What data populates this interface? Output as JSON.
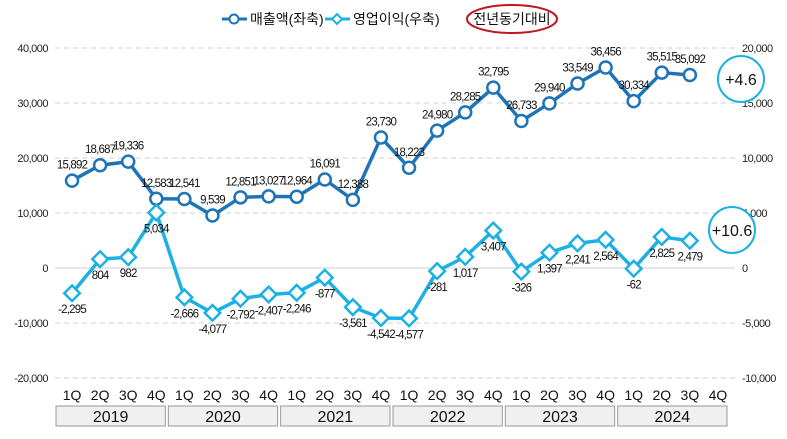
{
  "chart_data": {
    "type": "line",
    "legend": {
      "revenue": "매출액(좌축)",
      "op": "영업이익(우축)",
      "yoy": "전년동기대비"
    },
    "quarters": [
      "1Q",
      "2Q",
      "3Q",
      "4Q",
      "1Q",
      "2Q",
      "3Q",
      "4Q",
      "1Q",
      "2Q",
      "3Q",
      "4Q",
      "1Q",
      "2Q",
      "3Q",
      "4Q",
      "1Q",
      "2Q",
      "3Q",
      "4Q",
      "1Q",
      "2Q",
      "3Q",
      "4Q"
    ],
    "years": [
      "2019",
      "2020",
      "2021",
      "2022",
      "2023",
      "2024"
    ],
    "left_axis": {
      "ylim": [
        -20000,
        40000
      ],
      "ticks": [
        "-20,000",
        "-10,000",
        "0",
        "10,000",
        "20,000",
        "30,000",
        "40,000"
      ]
    },
    "right_axis": {
      "ylim": [
        -10000,
        20000
      ],
      "ticks": [
        "-10,000",
        "-5,000",
        "0",
        "5,000",
        "10,000",
        "15,000",
        "20,000"
      ]
    },
    "series": [
      {
        "name": "매출액(좌축)",
        "axis": "left",
        "color": "#1f74b8",
        "values": [
          15892,
          18687,
          19336,
          12583,
          12541,
          9539,
          12851,
          13027,
          12964,
          16091,
          12388,
          23730,
          18223,
          24980,
          28285,
          32795,
          26733,
          29940,
          33549,
          36456,
          30334,
          35515,
          35092
        ],
        "labels": [
          "15,892",
          "18,687",
          "19,336",
          "12,583",
          "12,541",
          "9,539",
          "12,851",
          "13,027",
          "12,964",
          "16,091",
          "12,388",
          "23,730",
          "18,223",
          "24,980",
          "28,285",
          "32,795",
          "26,733",
          "29,940",
          "33,549",
          "36,456",
          "30,334",
          "35,515",
          "35,092"
        ]
      },
      {
        "name": "영업이익(우축)",
        "axis": "right",
        "color": "#1cb0e3",
        "values": [
          -2295,
          804,
          982,
          5034,
          -2666,
          -4077,
          -2792,
          -2407,
          -2246,
          -877,
          -3561,
          -4542,
          -4577,
          -281,
          1017,
          3407,
          -326,
          1397,
          2241,
          2564,
          -62,
          2825,
          2479
        ],
        "labels": [
          "-2,295",
          "804",
          "982",
          "5,034",
          "-2,666",
          "-4,077",
          "-2,792",
          "-2,407",
          "-2,246",
          "-877",
          "-3,561",
          "-4,542",
          "-4,577",
          "-281",
          "1,017",
          "3,407",
          "-326",
          "1,397",
          "2,241",
          "2,564",
          "-62",
          "2,825",
          "2,479"
        ]
      }
    ],
    "annotations": {
      "revenue_yoy": "+4.6",
      "op_yoy": "+10.6"
    }
  }
}
